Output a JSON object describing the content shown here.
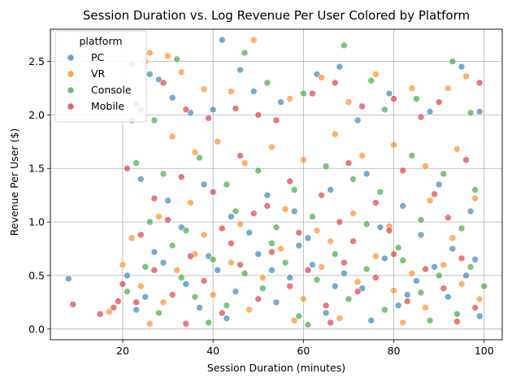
{
  "chart_data": {
    "type": "scatter",
    "title": "Session Duration vs. Log Revenue Per User Colored by Platform",
    "xlabel": "Session Duration (minutes)",
    "ylabel": "Revenue Per User ($)",
    "xlim": [
      4,
      104
    ],
    "ylim": [
      -0.1,
      2.8
    ],
    "x_ticks": [
      20,
      40,
      60,
      80,
      100
    ],
    "y_ticks": [
      0.0,
      0.5,
      1.0,
      1.5,
      2.0,
      2.5
    ],
    "x_tick_labels": [
      "20",
      "40",
      "60",
      "80",
      "100"
    ],
    "y_tick_labels": [
      "0.0",
      "0.5",
      "1.0",
      "1.5",
      "2.0",
      "2.5"
    ],
    "grid": true,
    "legend": {
      "title": "platform",
      "placement": "top-left"
    },
    "series": [
      {
        "name": "PC",
        "color": "#1f77b4",
        "points": [
          [
            8,
            0.47
          ],
          [
            22,
            1.95
          ],
          [
            26,
            2.38
          ],
          [
            28,
            2.33
          ],
          [
            31,
            2.16
          ],
          [
            35,
            2.02
          ],
          [
            40,
            2.05
          ],
          [
            42,
            2.7
          ],
          [
            46,
            2.42
          ],
          [
            49,
            2.22
          ],
          [
            55,
            2.12
          ],
          [
            63,
            2.38
          ],
          [
            68,
            2.45
          ],
          [
            72,
            1.95
          ],
          [
            79,
            2.2
          ],
          [
            88,
            2.03
          ],
          [
            95,
            2.45
          ],
          [
            99,
            2.03
          ],
          [
            24,
            1.4
          ],
          [
            30,
            1.2
          ],
          [
            38,
            1.35
          ],
          [
            44,
            1.05
          ],
          [
            52,
            1.25
          ],
          [
            58,
            1.1
          ],
          [
            66,
            1.3
          ],
          [
            74,
            1.45
          ],
          [
            82,
            1.15
          ],
          [
            90,
            1.35
          ],
          [
            97,
            1.1
          ],
          [
            33,
            0.95
          ],
          [
            48,
            0.9
          ],
          [
            61,
            0.85
          ],
          [
            77,
            0.95
          ],
          [
            86,
            0.88
          ],
          [
            21,
            0.5
          ],
          [
            25,
            0.3
          ],
          [
            29,
            0.62
          ],
          [
            34,
            0.42
          ],
          [
            37,
            0.2
          ],
          [
            41,
            0.55
          ],
          [
            45,
            0.35
          ],
          [
            50,
            0.7
          ],
          [
            54,
            0.25
          ],
          [
            57,
            0.48
          ],
          [
            62,
            0.6
          ],
          [
            65,
            0.15
          ],
          [
            69,
            0.52
          ],
          [
            73,
            0.38
          ],
          [
            78,
            0.66
          ],
          [
            81,
            0.22
          ],
          [
            85,
            0.45
          ],
          [
            89,
            0.58
          ],
          [
            92,
            0.3
          ],
          [
            96,
            0.5
          ],
          [
            99,
            0.12
          ],
          [
            27,
            0.72
          ],
          [
            43,
            0.1
          ],
          [
            59,
            0.78
          ],
          [
            75,
            0.08
          ],
          [
            93,
            0.75
          ],
          [
            23,
            0.18
          ],
          [
            39,
            0.68
          ],
          [
            53,
            0.55
          ],
          [
            67,
            0.4
          ],
          [
            83,
            0.32
          ],
          [
            98,
            0.65
          ]
        ]
      },
      {
        "name": "VR",
        "color": "#ff7f0e",
        "points": [
          [
            25,
            2.5
          ],
          [
            26,
            2.58
          ],
          [
            30,
            2.55
          ],
          [
            33,
            2.4
          ],
          [
            38,
            2.24
          ],
          [
            44,
            2.22
          ],
          [
            49,
            2.7
          ],
          [
            57,
            2.15
          ],
          [
            64,
            2.35
          ],
          [
            70,
            2.12
          ],
          [
            76,
            2.38
          ],
          [
            84,
            2.25
          ],
          [
            92,
            2.25
          ],
          [
            96,
            2.36
          ],
          [
            31,
            1.8
          ],
          [
            36,
            1.65
          ],
          [
            41,
            1.75
          ],
          [
            47,
            1.55
          ],
          [
            53,
            1.7
          ],
          [
            60,
            1.58
          ],
          [
            67,
            1.82
          ],
          [
            73,
            1.62
          ],
          [
            80,
            1.72
          ],
          [
            87,
            1.52
          ],
          [
            94,
            1.68
          ],
          [
            22,
            0.85
          ],
          [
            28,
            1.05
          ],
          [
            35,
            1.18
          ],
          [
            46,
            0.98
          ],
          [
            56,
            1.12
          ],
          [
            63,
            0.92
          ],
          [
            71,
            1.08
          ],
          [
            79,
            0.96
          ],
          [
            88,
            1.2
          ],
          [
            98,
            1.22
          ],
          [
            17,
            0.16
          ],
          [
            20,
            0.6
          ],
          [
            24,
            0.4
          ],
          [
            29,
            0.25
          ],
          [
            32,
            0.55
          ],
          [
            36,
            0.7
          ],
          [
            40,
            0.32
          ],
          [
            44,
            0.62
          ],
          [
            48,
            0.18
          ],
          [
            51,
            0.48
          ],
          [
            55,
            0.75
          ],
          [
            60,
            0.28
          ],
          [
            64,
            0.58
          ],
          [
            68,
            0.1
          ],
          [
            72,
            0.44
          ],
          [
            76,
            0.68
          ],
          [
            80,
            0.36
          ],
          [
            84,
            0.52
          ],
          [
            87,
            0.2
          ],
          [
            91,
            0.6
          ],
          [
            95,
            0.42
          ],
          [
            99,
            0.28
          ],
          [
            26,
            0.05
          ],
          [
            58,
            0.08
          ],
          [
            82,
            0.06
          ],
          [
            38,
            0.88
          ],
          [
            66,
            0.82
          ],
          [
            93,
            0.85
          ]
        ]
      },
      {
        "name": "Console",
        "color": "#2ca02c",
        "points": [
          [
            24,
            2.05
          ],
          [
            27,
            1.95
          ],
          [
            32,
            2.52
          ],
          [
            47,
            2.58
          ],
          [
            52,
            2.3
          ],
          [
            60,
            2.2
          ],
          [
            69,
            2.65
          ],
          [
            75,
            2.32
          ],
          [
            78,
            2.05
          ],
          [
            85,
            2.15
          ],
          [
            93,
            2.5
          ],
          [
            97,
            2.02
          ],
          [
            23,
            1.55
          ],
          [
            29,
            1.45
          ],
          [
            37,
            1.6
          ],
          [
            43,
            1.35
          ],
          [
            50,
            1.48
          ],
          [
            58,
            1.3
          ],
          [
            65,
            1.52
          ],
          [
            71,
            1.4
          ],
          [
            77,
            1.28
          ],
          [
            84,
            1.62
          ],
          [
            91,
            1.45
          ],
          [
            98,
            1.3
          ],
          [
            26,
            1.0
          ],
          [
            34,
            0.92
          ],
          [
            45,
            1.1
          ],
          [
            54,
            0.95
          ],
          [
            62,
            1.05
          ],
          [
            74,
            0.98
          ],
          [
            86,
            1.02
          ],
          [
            95,
            0.94
          ],
          [
            21,
            0.35
          ],
          [
            25,
            0.58
          ],
          [
            28,
            0.15
          ],
          [
            33,
            0.48
          ],
          [
            36,
            0.3
          ],
          [
            40,
            0.65
          ],
          [
            43,
            0.22
          ],
          [
            47,
            0.52
          ],
          [
            51,
            0.38
          ],
          [
            56,
            0.62
          ],
          [
            59,
            0.12
          ],
          [
            63,
            0.46
          ],
          [
            67,
            0.7
          ],
          [
            70,
            0.28
          ],
          [
            74,
            0.56
          ],
          [
            78,
            0.18
          ],
          [
            82,
            0.64
          ],
          [
            86,
            0.34
          ],
          [
            90,
            0.5
          ],
          [
            94,
            0.14
          ],
          [
            97,
            0.58
          ],
          [
            31,
            0.78
          ],
          [
            53,
            0.8
          ],
          [
            81,
            0.76
          ],
          [
            39,
            0.06
          ],
          [
            61,
            0.04
          ],
          [
            88,
            0.08
          ],
          [
            100,
            0.4
          ]
        ]
      },
      {
        "name": "Mobile",
        "color": "#d62728",
        "points": [
          [
            9,
            0.23
          ],
          [
            15,
            0.14
          ],
          [
            18,
            0.2
          ],
          [
            19,
            0.26
          ],
          [
            22,
            2.48
          ],
          [
            23,
            2.1
          ],
          [
            29,
            2.3
          ],
          [
            34,
            2.05
          ],
          [
            39,
            1.97
          ],
          [
            45,
            2.06
          ],
          [
            50,
            2.0
          ],
          [
            54,
            1.95
          ],
          [
            62,
            2.2
          ],
          [
            67,
            2.3
          ],
          [
            73,
            2.08
          ],
          [
            80,
            2.15
          ],
          [
            86,
            1.98
          ],
          [
            90,
            2.12
          ],
          [
            99,
            2.3
          ],
          [
            21,
            1.5
          ],
          [
            27,
            1.22
          ],
          [
            33,
            1.42
          ],
          [
            40,
            1.28
          ],
          [
            46,
            1.62
          ],
          [
            52,
            1.15
          ],
          [
            57,
            1.38
          ],
          [
            64,
            1.25
          ],
          [
            70,
            1.55
          ],
          [
            76,
            1.18
          ],
          [
            82,
            1.48
          ],
          [
            89,
            1.26
          ],
          [
            96,
            1.58
          ],
          [
            24,
            0.88
          ],
          [
            30,
            1.02
          ],
          [
            42,
            0.94
          ],
          [
            49,
            1.08
          ],
          [
            59,
            0.9
          ],
          [
            68,
            1.0
          ],
          [
            79,
            0.92
          ],
          [
            92,
            1.04
          ],
          [
            20,
            0.42
          ],
          [
            23,
            0.25
          ],
          [
            27,
            0.55
          ],
          [
            31,
            0.32
          ],
          [
            35,
            0.68
          ],
          [
            38,
            0.45
          ],
          [
            42,
            0.15
          ],
          [
            46,
            0.6
          ],
          [
            50,
            0.28
          ],
          [
            53,
            0.72
          ],
          [
            57,
            0.4
          ],
          [
            61,
            0.55
          ],
          [
            65,
            0.22
          ],
          [
            69,
            0.62
          ],
          [
            72,
            0.35
          ],
          [
            76,
            0.48
          ],
          [
            80,
            0.7
          ],
          [
            83,
            0.26
          ],
          [
            87,
            0.56
          ],
          [
            91,
            0.38
          ],
          [
            95,
            0.66
          ],
          [
            98,
            0.2
          ],
          [
            44,
            0.8
          ],
          [
            71,
            0.82
          ],
          [
            34,
            0.05
          ],
          [
            66,
            0.06
          ],
          [
            94,
            0.07
          ]
        ]
      }
    ]
  }
}
